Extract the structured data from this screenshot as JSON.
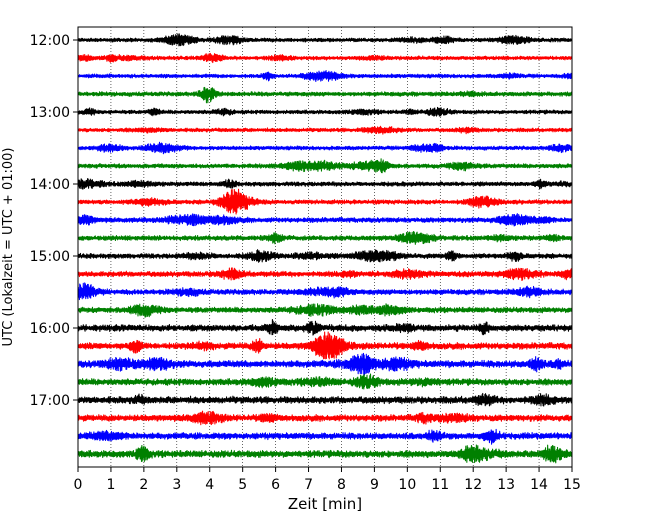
{
  "chart_data": {
    "type": "line",
    "title": "",
    "xlabel": "Zeit  [min]",
    "ylabel": "UTC (Lokalzeit = UTC + 01:00)",
    "xlim": [
      0,
      15
    ],
    "x_ticks": [
      "0",
      "1",
      "2",
      "3",
      "4",
      "5",
      "6",
      "7",
      "8",
      "9",
      "10",
      "11",
      "12",
      "13",
      "14",
      "15"
    ],
    "y_ticks": [
      "12:00",
      "13:00",
      "14:00",
      "15:00",
      "16:00",
      "17:00"
    ],
    "grid": "vertical dotted lines at each minute",
    "trace_interval_minutes": 15,
    "trace_colors": [
      "#000000",
      "#ff0000",
      "#0000ff",
      "#008000"
    ],
    "traces": [
      {
        "start": "12:00",
        "color": "#000000",
        "amplitude": 0.35
      },
      {
        "start": "12:15",
        "color": "#ff0000",
        "amplitude": 0.35
      },
      {
        "start": "12:30",
        "color": "#0000ff",
        "amplitude": 0.35
      },
      {
        "start": "12:45",
        "color": "#008000",
        "amplitude": 0.4
      },
      {
        "start": "13:00",
        "color": "#000000",
        "amplitude": 0.35
      },
      {
        "start": "13:15",
        "color": "#ff0000",
        "amplitude": 0.35
      },
      {
        "start": "13:30",
        "color": "#0000ff",
        "amplitude": 0.35
      },
      {
        "start": "13:45",
        "color": "#008000",
        "amplitude": 0.4
      },
      {
        "start": "14:00",
        "color": "#000000",
        "amplitude": 0.4
      },
      {
        "start": "14:15",
        "color": "#ff0000",
        "amplitude": 0.4
      },
      {
        "start": "14:30",
        "color": "#0000ff",
        "amplitude": 0.45
      },
      {
        "start": "14:45",
        "color": "#008000",
        "amplitude": 0.45
      },
      {
        "start": "15:00",
        "color": "#000000",
        "amplitude": 0.45
      },
      {
        "start": "15:15",
        "color": "#ff0000",
        "amplitude": 0.5
      },
      {
        "start": "15:30",
        "color": "#0000ff",
        "amplitude": 0.5
      },
      {
        "start": "15:45",
        "color": "#008000",
        "amplitude": 0.5
      },
      {
        "start": "16:00",
        "color": "#000000",
        "amplitude": 0.6
      },
      {
        "start": "16:15",
        "color": "#ff0000",
        "amplitude": 0.6
      },
      {
        "start": "16:30",
        "color": "#0000ff",
        "amplitude": 0.65
      },
      {
        "start": "16:45",
        "color": "#008000",
        "amplitude": 0.6
      },
      {
        "start": "17:00",
        "color": "#000000",
        "amplitude": 0.65
      },
      {
        "start": "17:15",
        "color": "#ff0000",
        "amplitude": 0.6
      },
      {
        "start": "17:30",
        "color": "#0000ff",
        "amplitude": 0.6
      },
      {
        "start": "17:45",
        "color": "#008000",
        "amplitude": 0.65
      }
    ]
  }
}
